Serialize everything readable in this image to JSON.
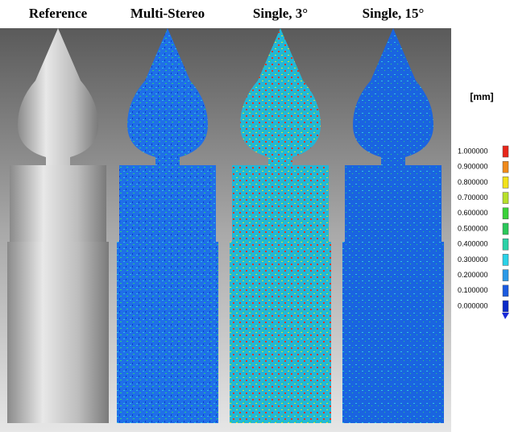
{
  "panels": [
    {
      "title": "Reference"
    },
    {
      "title": "Multi-Stereo"
    },
    {
      "title": "Single, 3°"
    },
    {
      "title": "Single, 15°"
    }
  ],
  "colorbar": {
    "unit": "[mm]",
    "range": [
      0,
      1
    ],
    "ticks": [
      {
        "value": 1,
        "label": "1.000000"
      },
      {
        "value": 0.9,
        "label": "0.900000"
      },
      {
        "value": 0.8,
        "label": "0.800000"
      },
      {
        "value": 0.7,
        "label": "0.700000"
      },
      {
        "value": 0.6,
        "label": "0.600000"
      },
      {
        "value": 0.5,
        "label": "0.500000"
      },
      {
        "value": 0.4,
        "label": "0.400000"
      },
      {
        "value": 0.3,
        "label": "0.300000"
      },
      {
        "value": 0.2,
        "label": "0.200000"
      },
      {
        "value": 0.1,
        "label": "0.100000"
      },
      {
        "value": 0,
        "label": "0.000000"
      }
    ]
  }
}
